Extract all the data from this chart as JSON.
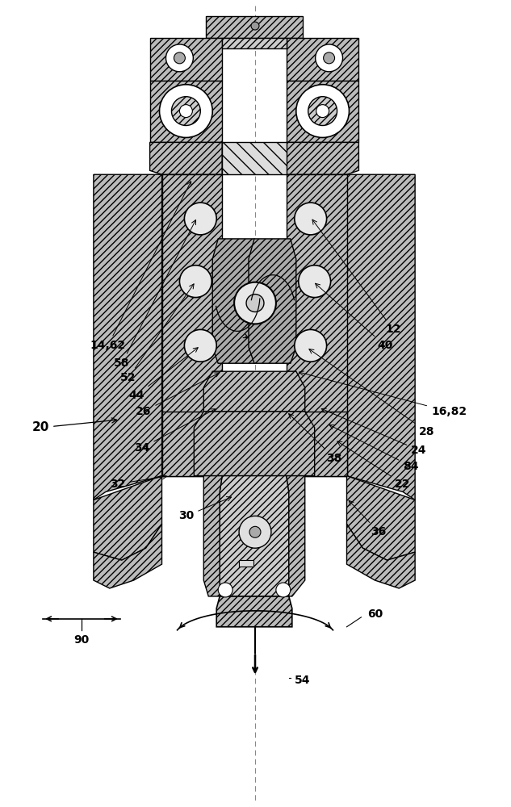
{
  "bg_color": "#ffffff",
  "line_color": "#000000",
  "figsize": [
    6.33,
    10.0
  ],
  "dpi": 100,
  "hfc": "#bbbbbb",
  "wc": "#ffffff"
}
